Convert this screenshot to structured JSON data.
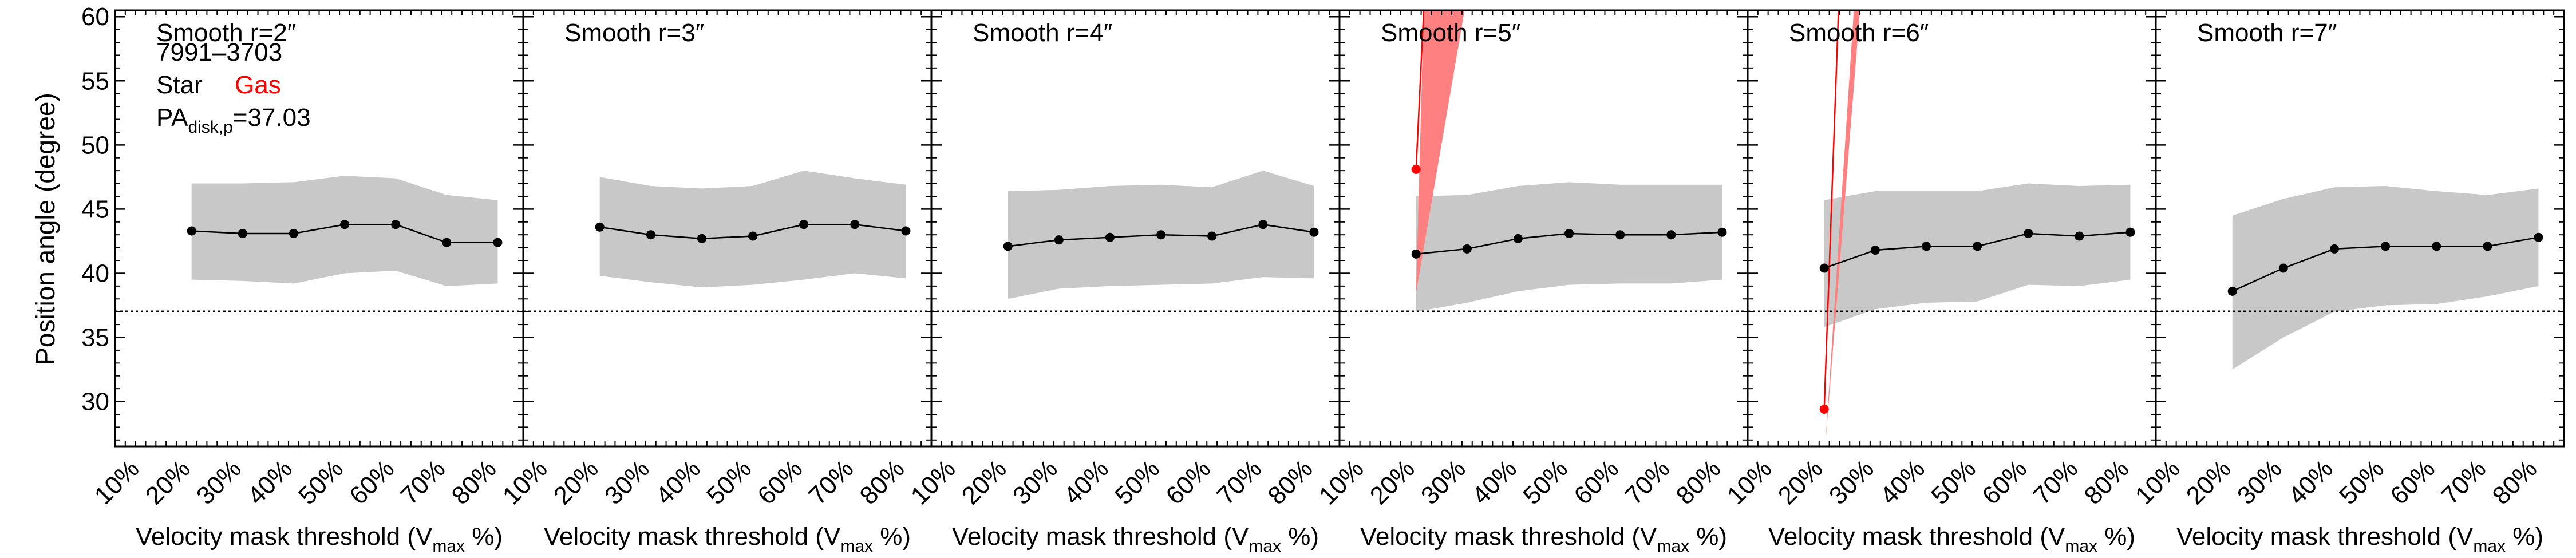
{
  "figure": {
    "ylabel": "Position angle (degree)",
    "legend": {
      "id_text": "7991–3703",
      "star_label": "Star",
      "gas_label": "Gas",
      "pa_prefix": "PA",
      "pa_sub": "disk,p",
      "pa_value": "=37.03"
    },
    "xlabel_main": "Velocity mask threshold (V",
    "xlabel_sub": "max",
    "xlabel_end": " %)"
  },
  "colors": {
    "star_line": "#000000",
    "star_band": "#c8c8c8",
    "gas": "#ff0000",
    "gas_band": "#ff8080",
    "reference_line": "#000000"
  },
  "chart_data": [
    {
      "type": "line",
      "title": "Smooth r=2″",
      "x_tick_labels": [
        "10%",
        "20%",
        "30%",
        "40%",
        "50%",
        "60%",
        "70%",
        "80%"
      ],
      "y_ticks": [
        30,
        35,
        40,
        45,
        50,
        55,
        60
      ],
      "ylim": [
        26.5,
        60.5
      ],
      "xlim": [
        5,
        85
      ],
      "reference_pa": 37.03,
      "star": {
        "x": [
          20,
          30,
          40,
          50,
          60,
          70,
          80
        ],
        "y": [
          43.3,
          43.1,
          43.1,
          43.8,
          43.8,
          42.4,
          42.4
        ],
        "band_upper": [
          47.0,
          47.0,
          47.1,
          47.6,
          47.4,
          46.1,
          45.7
        ],
        "band_lower": [
          39.5,
          39.4,
          39.2,
          40.0,
          40.2,
          39.0,
          39.2
        ]
      }
    },
    {
      "type": "line",
      "title": "Smooth r=3″",
      "x_tick_labels": [
        "10%",
        "20%",
        "30%",
        "40%",
        "50%",
        "60%",
        "70%",
        "80%"
      ],
      "y_ticks": [
        30,
        35,
        40,
        45,
        50,
        55,
        60
      ],
      "ylim": [
        26.5,
        60.5
      ],
      "xlim": [
        5,
        85
      ],
      "reference_pa": 37.03,
      "star": {
        "x": [
          20,
          30,
          40,
          50,
          60,
          70,
          80
        ],
        "y": [
          43.6,
          43.0,
          42.7,
          42.9,
          43.8,
          43.8,
          43.3
        ],
        "band_upper": [
          47.5,
          46.8,
          46.6,
          46.8,
          48.0,
          47.4,
          46.9
        ],
        "band_lower": [
          39.8,
          39.3,
          38.9,
          39.1,
          39.5,
          40.0,
          39.6
        ]
      }
    },
    {
      "type": "line",
      "title": "Smooth r=4″",
      "x_tick_labels": [
        "10%",
        "20%",
        "30%",
        "40%",
        "50%",
        "60%",
        "70%",
        "80%"
      ],
      "y_ticks": [
        30,
        35,
        40,
        45,
        50,
        55,
        60
      ],
      "ylim": [
        26.5,
        60.5
      ],
      "xlim": [
        5,
        85
      ],
      "reference_pa": 37.03,
      "star": {
        "x": [
          20,
          30,
          40,
          50,
          60,
          70,
          80
        ],
        "y": [
          42.1,
          42.6,
          42.8,
          43.0,
          42.9,
          43.8,
          43.2
        ],
        "band_upper": [
          46.4,
          46.5,
          46.8,
          46.9,
          46.7,
          48.0,
          46.8
        ],
        "band_lower": [
          38.0,
          38.8,
          39.0,
          39.1,
          39.2,
          39.7,
          39.6
        ]
      }
    },
    {
      "type": "line",
      "title": "Smooth r=5″",
      "x_tick_labels": [
        "10%",
        "20%",
        "30%",
        "40%",
        "50%",
        "60%",
        "70%",
        "80%"
      ],
      "y_ticks": [
        30,
        35,
        40,
        45,
        50,
        55,
        60
      ],
      "ylim": [
        26.5,
        60.5
      ],
      "xlim": [
        5,
        85
      ],
      "reference_pa": 37.03,
      "star": {
        "x": [
          20,
          30,
          40,
          50,
          60,
          70,
          80
        ],
        "y": [
          41.5,
          41.9,
          42.7,
          43.1,
          43.0,
          43.0,
          43.2
        ],
        "band_upper": [
          46.0,
          46.1,
          46.8,
          47.1,
          46.9,
          46.9,
          46.9
        ],
        "band_lower": [
          37.0,
          37.7,
          38.6,
          39.1,
          39.2,
          39.2,
          39.5
        ]
      },
      "gas": {
        "x": [
          20
        ],
        "y": [
          48.1
        ],
        "wedge_from": [
          20,
          38.5
        ],
        "wedge_to_low": [
          21.5,
          60.5
        ],
        "wedge_to_high": [
          29.5,
          60.5
        ],
        "line_to": [
          21.5,
          60.5
        ]
      }
    },
    {
      "type": "line",
      "title": "Smooth r=6″",
      "x_tick_labels": [
        "10%",
        "20%",
        "30%",
        "40%",
        "50%",
        "60%",
        "70%",
        "80%"
      ],
      "y_ticks": [
        30,
        35,
        40,
        45,
        50,
        55,
        60
      ],
      "ylim": [
        26.5,
        60.5
      ],
      "xlim": [
        5,
        85
      ],
      "reference_pa": 37.03,
      "star": {
        "x": [
          20,
          30,
          40,
          50,
          60,
          70,
          80
        ],
        "y": [
          40.4,
          41.8,
          42.1,
          42.1,
          43.1,
          42.9,
          43.2
        ],
        "band_upper": [
          45.7,
          46.4,
          46.4,
          46.4,
          47.0,
          46.8,
          46.9
        ],
        "band_lower": [
          35.8,
          37.2,
          37.7,
          37.8,
          39.1,
          39.0,
          39.5
        ]
      },
      "gas": {
        "x": [
          20
        ],
        "y": [
          29.4
        ],
        "wedge_from": [
          20.2,
          26.5
        ],
        "wedge_to_low": [
          25.8,
          60.5
        ],
        "wedge_to_high": [
          27.0,
          60.5
        ],
        "line_to": [
          22.8,
          60.5
        ]
      }
    },
    {
      "type": "line",
      "title": "Smooth r=7″",
      "x_tick_labels": [
        "10%",
        "20%",
        "30%",
        "40%",
        "50%",
        "60%",
        "70%",
        "80%"
      ],
      "y_ticks": [
        30,
        35,
        40,
        45,
        50,
        55,
        60
      ],
      "ylim": [
        26.5,
        60.5
      ],
      "xlim": [
        5,
        85
      ],
      "reference_pa": 37.03,
      "star": {
        "x": [
          20,
          30,
          40,
          50,
          60,
          70,
          80
        ],
        "y": [
          38.6,
          40.4,
          41.9,
          42.1,
          42.1,
          42.1,
          42.8
        ],
        "band_upper": [
          44.5,
          45.8,
          46.7,
          46.8,
          46.4,
          46.1,
          46.6
        ],
        "band_lower": [
          32.5,
          35.0,
          37.0,
          37.5,
          37.6,
          38.2,
          39.0
        ]
      }
    }
  ]
}
